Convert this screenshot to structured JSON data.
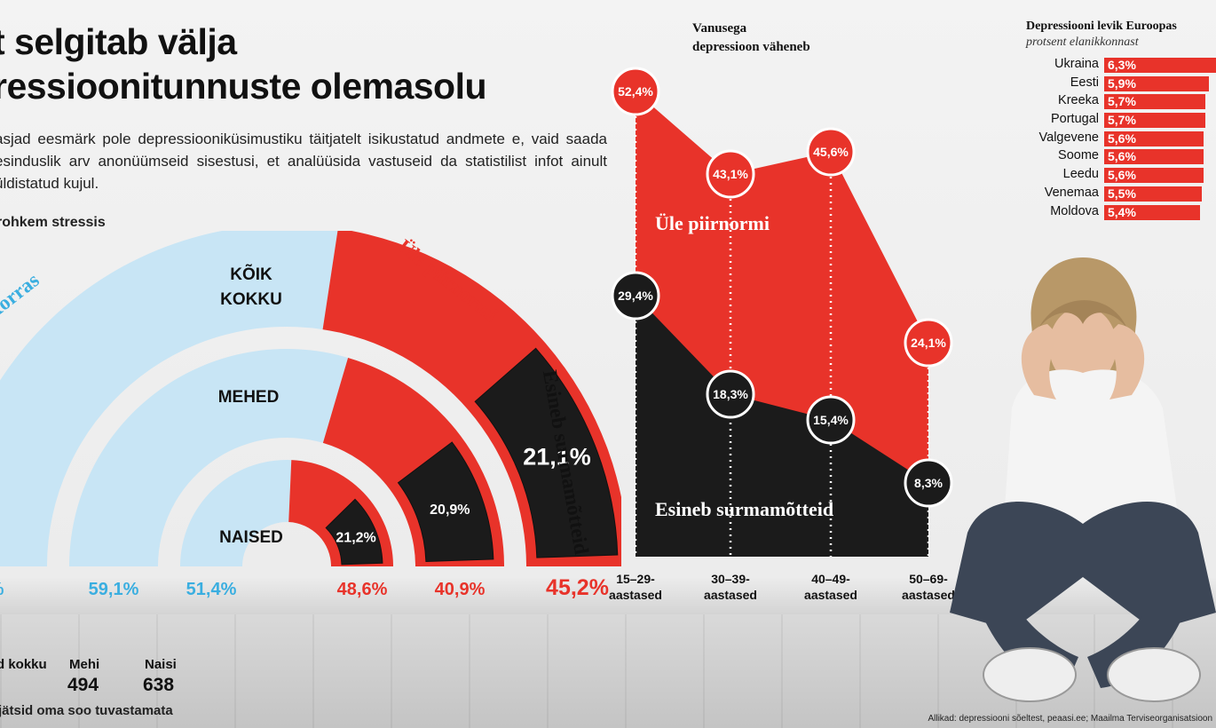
{
  "header": {
    "title_line1": "t selgitab välja",
    "title_line2": "ressioonitunnuste olemasolu",
    "intro": "asjad eesmärk pole depressiooniküsimustiku täitjatelt isikustatud andmete e, vaid saada esinduslik arv anonüümseid sisestusi, et analüüsida vastuseid da statistilist infot ainult üldistatud kujul.",
    "section_label": "rohkem stressis"
  },
  "colors": {
    "red": "#e8332a",
    "blue": "#c8e5f5",
    "blue_text": "#3aaee0",
    "black": "#1b1b1b"
  },
  "chart_data": [
    {
      "type": "pie",
      "subtype": "nested-semicircle",
      "series_labels": {
        "ok": "Korras",
        "over": "Üle piirnormi",
        "suicidal": "Esineb surmamõtteid"
      },
      "groups": [
        {
          "name": "KÕIK KOKKU",
          "name_line1": "KÕIK",
          "name_line2": "KOKKU",
          "ok_label": "%",
          "over_label": "45,2%",
          "suicidal_label": "21,1%",
          "ok": 54.8,
          "over": 45.2,
          "suicidal_share": 21.1
        },
        {
          "name": "MEHED",
          "ok_label": "59,1%",
          "over_label": "40,9%",
          "suicidal_label": "20,9%",
          "ok": 59.1,
          "over": 40.9,
          "suicidal_share": 20.9
        },
        {
          "name": "NAISED",
          "ok_label": "51,4%",
          "over_label": "48,6%",
          "suicidal_label": "21,2%",
          "ok": 51.4,
          "over": 48.6,
          "suicidal_share": 21.2
        }
      ]
    },
    {
      "type": "area",
      "title_line1": "Vanusega",
      "title_line2": "depressioon väheneb",
      "categories": [
        {
          "line1": "15–29-",
          "line2": "aastased"
        },
        {
          "line1": "30–39-",
          "line2": "aastased"
        },
        {
          "line1": "40–49-",
          "line2": "aastased"
        },
        {
          "line1": "50–69-",
          "line2": "aastased"
        }
      ],
      "series": [
        {
          "name": "Üle piirnormi",
          "values": [
            52.4,
            43.1,
            45.6,
            24.1
          ],
          "labels": [
            "52,4%",
            "43,1%",
            "45,6%",
            "24,1%"
          ]
        },
        {
          "name": "Esineb surmamõtteid",
          "values": [
            29.4,
            18.3,
            15.4,
            8.3
          ],
          "labels": [
            "29,4%",
            "18,3%",
            "15,4%",
            "8,3%"
          ]
        }
      ],
      "ylim": [
        0,
        60
      ]
    },
    {
      "type": "bar",
      "title": "Depressiooni levik Euroopas",
      "subtitle": "protsent elanikkonnast",
      "categories": [
        "Ukraina",
        "Eesti",
        "Kreeka",
        "Portugal",
        "Valgevene",
        "Soome",
        "Leedu",
        "Venemaa",
        "Moldova"
      ],
      "values": [
        6.3,
        5.9,
        5.7,
        5.7,
        5.6,
        5.6,
        5.6,
        5.5,
        5.4
      ],
      "labels": [
        "6,3%",
        "5,9%",
        "5,7%",
        "5,7%",
        "5,6%",
        "5,6%",
        "5,6%",
        "5,5%",
        "5,4%"
      ],
      "xlim": [
        0,
        6.3
      ]
    }
  ],
  "stats": {
    "total_label": "d kokku",
    "men_label": "Mehi",
    "men_value": "494",
    "women_label": "Naisi",
    "women_value": "638",
    "note": "jätsid oma soo tuvastamata"
  },
  "source": "Allikad: depressiooni sõeltest, peaasi.ee; Maailma Terviseorganisatsioon"
}
